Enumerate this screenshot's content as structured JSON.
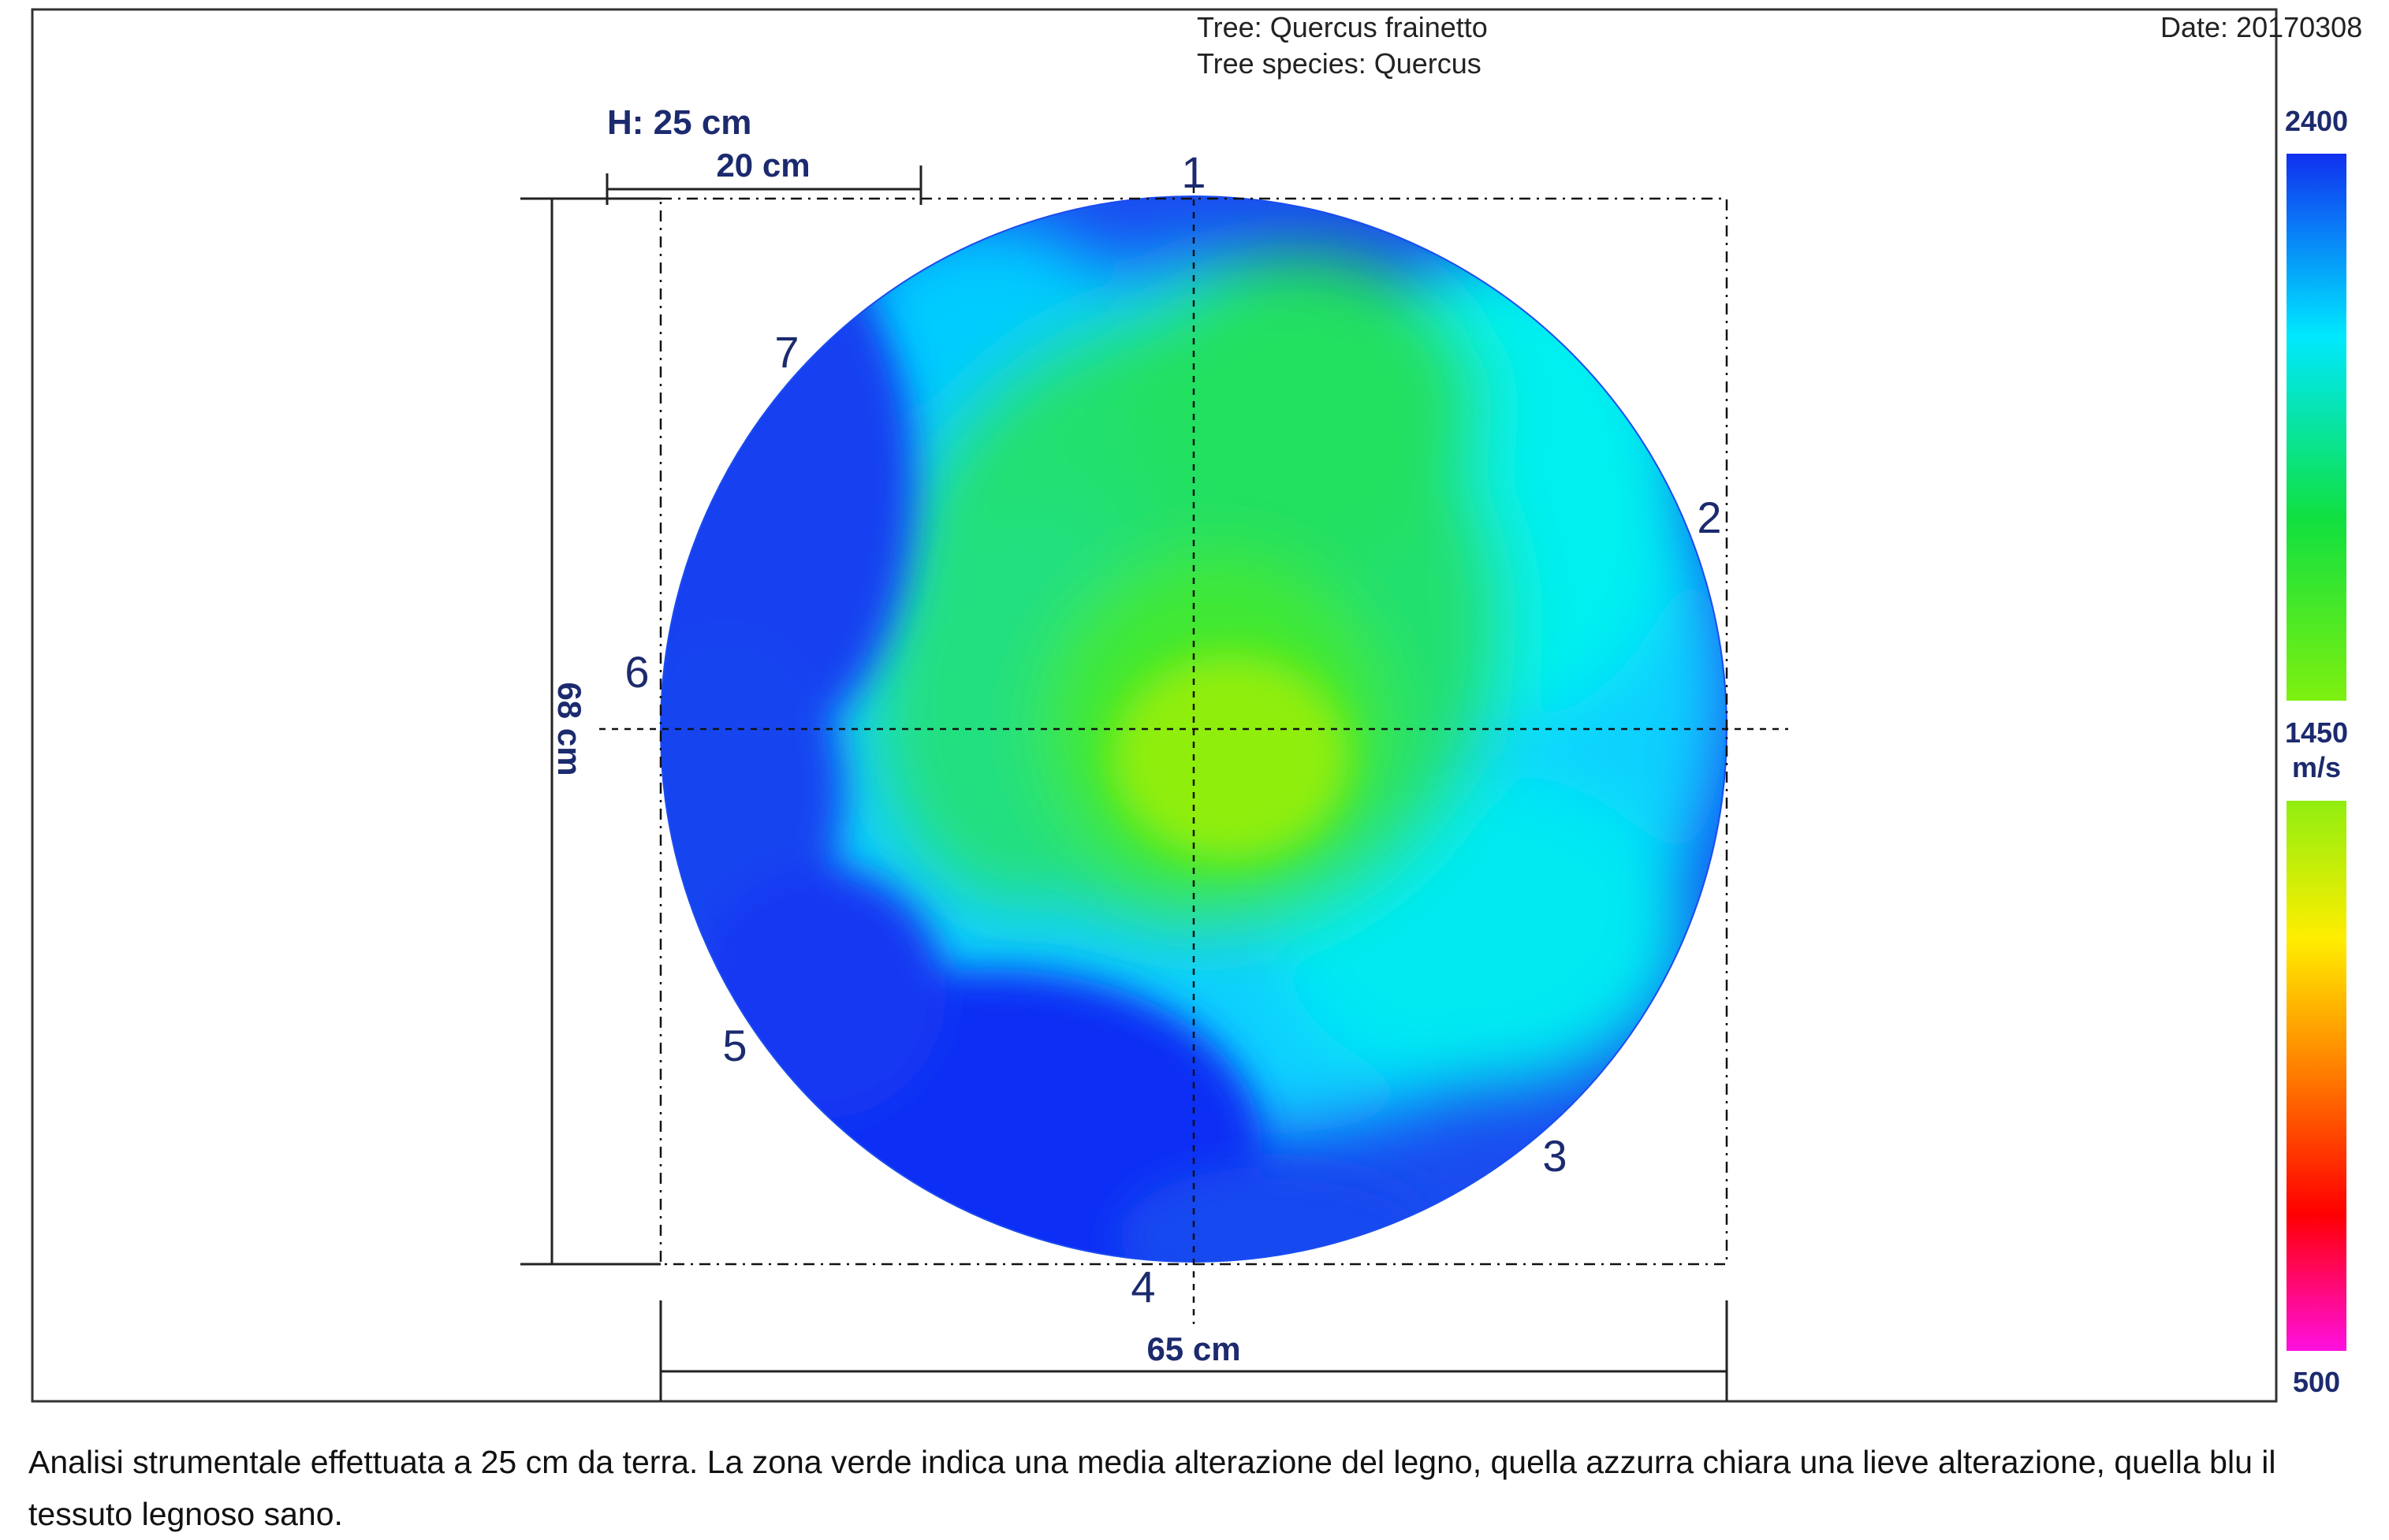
{
  "header": {
    "tree": "Tree: Quercus frainetto",
    "species": "Tree species: Quercus",
    "date": "Date: 20170308"
  },
  "dimensions": {
    "height_label": "H: 25 cm",
    "scale_label": "20 cm",
    "vertical_label": "68 cm",
    "horizontal_label": "65 cm"
  },
  "sensors": [
    "1",
    "2",
    "3",
    "4",
    "5",
    "6",
    "7"
  ],
  "legend": {
    "max": "2400",
    "mid": "1450",
    "unit": "m/s",
    "min": "500",
    "colors_upper": [
      "#1030f0",
      "#00e8ff",
      "#10e040",
      "#7ef010"
    ],
    "colors_lower": [
      "#90ee10",
      "#ffee00",
      "#ff7a00",
      "#ff0000",
      "#ff10e0"
    ]
  },
  "caption": "Analisi strumentale effettuata a 25 cm da terra. La zona verde indica una media alterazione del legno, quella azzurra chiara una lieve alterazione, quella blu il tessuto legnoso sano."
}
